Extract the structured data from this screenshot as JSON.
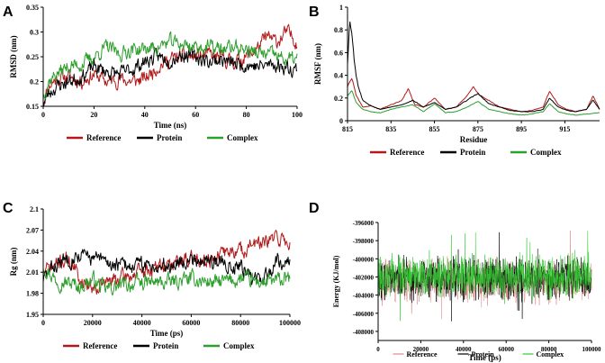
{
  "colors": {
    "reference": "#b11a1a",
    "protein": "#000000",
    "complex": "#2e9e2e",
    "reference_light": "#e08a8a",
    "complex_light": "#33cc33"
  },
  "chart_data": [
    {
      "panel": "A",
      "type": "line",
      "xlabel": "Time (ns)",
      "ylabel": "RMSD (nm)",
      "xlim": [
        0,
        100
      ],
      "ylim": [
        0.15,
        0.35
      ],
      "xticks": [
        0,
        20,
        40,
        60,
        80,
        100
      ],
      "yticks": [
        0.15,
        0.2,
        0.25,
        0.3,
        0.35
      ],
      "ytick_labels": [
        "0.15",
        "0.2",
        "0.25",
        "0.3",
        "0.35"
      ],
      "noise": 0.012,
      "series": [
        {
          "name": "Reference",
          "color_key": "reference",
          "seed": 11,
          "x": [
            0,
            2,
            5,
            10,
            15,
            20,
            25,
            30,
            35,
            40,
            45,
            50,
            55,
            60,
            65,
            70,
            75,
            80,
            85,
            88,
            92,
            96,
            100
          ],
          "y": [
            0.16,
            0.19,
            0.205,
            0.21,
            0.2,
            0.215,
            0.2,
            0.205,
            0.2,
            0.205,
            0.23,
            0.245,
            0.25,
            0.25,
            0.255,
            0.245,
            0.24,
            0.25,
            0.27,
            0.29,
            0.28,
            0.3,
            0.28
          ]
        },
        {
          "name": "Protein",
          "color_key": "protein",
          "seed": 23,
          "x": [
            0,
            2,
            5,
            10,
            15,
            20,
            25,
            30,
            35,
            40,
            45,
            50,
            55,
            60,
            65,
            70,
            75,
            80,
            85,
            90,
            95,
            100
          ],
          "y": [
            0.155,
            0.175,
            0.19,
            0.2,
            0.21,
            0.23,
            0.22,
            0.215,
            0.225,
            0.24,
            0.25,
            0.245,
            0.255,
            0.25,
            0.24,
            0.245,
            0.235,
            0.235,
            0.23,
            0.235,
            0.23,
            0.225
          ]
        },
        {
          "name": "Complex",
          "color_key": "complex",
          "seed": 37,
          "x": [
            0,
            2,
            5,
            10,
            15,
            20,
            25,
            30,
            35,
            40,
            45,
            50,
            55,
            60,
            65,
            70,
            75,
            80,
            85,
            90,
            95,
            100
          ],
          "y": [
            0.17,
            0.2,
            0.215,
            0.23,
            0.235,
            0.25,
            0.27,
            0.255,
            0.265,
            0.265,
            0.27,
            0.28,
            0.275,
            0.27,
            0.27,
            0.265,
            0.27,
            0.265,
            0.255,
            0.255,
            0.245,
            0.245
          ]
        }
      ],
      "legend": [
        "Reference",
        "Protein",
        "Complex"
      ]
    },
    {
      "panel": "B",
      "type": "line",
      "xlabel": "Residue",
      "ylabel": "RMSF (nm)",
      "xlim": [
        815,
        931
      ],
      "ylim": [
        0,
        1
      ],
      "xticks": [
        815,
        835,
        855,
        875,
        895,
        915
      ],
      "yticks": [
        0,
        0.2,
        0.4,
        0.6,
        0.8,
        1
      ],
      "ytick_labels": [
        "0",
        "0.2",
        "0.4",
        "0.6",
        "0.8",
        "1"
      ],
      "noise": 0.012,
      "series": [
        {
          "name": "Reference",
          "color_key": "reference",
          "seed": 41,
          "x": [
            815,
            817,
            819,
            822,
            826,
            830,
            835,
            840,
            843,
            846,
            850,
            855,
            860,
            865,
            870,
            873,
            876,
            880,
            885,
            890,
            895,
            900,
            905,
            908,
            912,
            916,
            920,
            925,
            928,
            931
          ],
          "y": [
            0.3,
            0.38,
            0.22,
            0.12,
            0.13,
            0.1,
            0.14,
            0.18,
            0.28,
            0.14,
            0.12,
            0.2,
            0.1,
            0.12,
            0.22,
            0.3,
            0.22,
            0.18,
            0.12,
            0.1,
            0.08,
            0.09,
            0.12,
            0.26,
            0.14,
            0.1,
            0.08,
            0.1,
            0.22,
            0.1
          ]
        },
        {
          "name": "Protein",
          "color_key": "protein",
          "seed": 53,
          "x": [
            815,
            816,
            817,
            818,
            819,
            820,
            822,
            825,
            830,
            835,
            840,
            845,
            850,
            855,
            860,
            865,
            870,
            875,
            880,
            885,
            890,
            895,
            900,
            905,
            908,
            912,
            916,
            920,
            925,
            928,
            931
          ],
          "y": [
            0.5,
            0.88,
            0.78,
            0.55,
            0.4,
            0.3,
            0.18,
            0.14,
            0.1,
            0.12,
            0.14,
            0.18,
            0.12,
            0.16,
            0.1,
            0.12,
            0.18,
            0.24,
            0.15,
            0.12,
            0.09,
            0.08,
            0.08,
            0.1,
            0.2,
            0.12,
            0.09,
            0.08,
            0.1,
            0.18,
            0.1
          ]
        },
        {
          "name": "Complex",
          "color_key": "complex",
          "seed": 67,
          "x": [
            815,
            817,
            819,
            822,
            826,
            830,
            835,
            840,
            845,
            850,
            855,
            860,
            865,
            870,
            875,
            880,
            885,
            890,
            895,
            900,
            905,
            908,
            912,
            916,
            920,
            925,
            931
          ],
          "y": [
            0.22,
            0.27,
            0.16,
            0.1,
            0.08,
            0.07,
            0.1,
            0.12,
            0.14,
            0.08,
            0.15,
            0.07,
            0.08,
            0.12,
            0.17,
            0.1,
            0.08,
            0.06,
            0.05,
            0.06,
            0.08,
            0.15,
            0.08,
            0.06,
            0.05,
            0.06,
            0.07
          ]
        }
      ],
      "legend": [
        "Reference",
        "Protein",
        "Complex"
      ]
    },
    {
      "panel": "C",
      "type": "line",
      "xlabel": "Time (ps)",
      "ylabel": "Rg (nm)",
      "xlim": [
        0,
        100000
      ],
      "ylim": [
        1.95,
        2.1
      ],
      "xticks": [
        0,
        20000,
        40000,
        60000,
        80000,
        100000
      ],
      "yticks": [
        1.95,
        1.98,
        2.01,
        2.04,
        2.07,
        2.1
      ],
      "ytick_labels": [
        "1.95",
        "1.98",
        "2.01",
        "2.04",
        "2.07",
        "2.1"
      ],
      "noise": 0.009,
      "series": [
        {
          "name": "Reference",
          "color_key": "reference",
          "seed": 71,
          "x": [
            0,
            5000,
            10000,
            15000,
            20000,
            30000,
            40000,
            50000,
            60000,
            70000,
            75000,
            80000,
            85000,
            90000,
            95000,
            100000
          ],
          "y": [
            2.01,
            2.02,
            2.03,
            2.0,
            1.99,
            2.0,
            2.01,
            2.02,
            2.03,
            2.03,
            2.04,
            2.04,
            2.05,
            2.05,
            2.06,
            2.05
          ]
        },
        {
          "name": "Protein",
          "color_key": "protein",
          "seed": 83,
          "x": [
            0,
            5000,
            10000,
            15000,
            20000,
            25000,
            30000,
            40000,
            50000,
            60000,
            70000,
            80000,
            85000,
            90000,
            95000,
            100000
          ],
          "y": [
            2.0,
            2.02,
            2.03,
            2.035,
            2.03,
            2.025,
            2.02,
            2.02,
            2.02,
            2.03,
            2.025,
            2.02,
            2.0,
            2.0,
            2.03,
            2.02
          ]
        },
        {
          "name": "Complex",
          "color_key": "complex",
          "seed": 97,
          "x": [
            0,
            5000,
            10000,
            15000,
            20000,
            25000,
            30000,
            40000,
            50000,
            60000,
            70000,
            80000,
            90000,
            100000
          ],
          "y": [
            2.02,
            2.0,
            1.995,
            1.99,
            2.0,
            1.985,
            1.99,
            1.995,
            1.995,
            2.0,
            1.995,
            2.0,
            1.995,
            2.0
          ]
        }
      ],
      "legend": [
        "Reference",
        "Protein",
        "Complex"
      ]
    },
    {
      "panel": "D",
      "type": "line",
      "xlabel": "Time (ps)",
      "ylabel": "Energy (KJ/mol)",
      "xlim": [
        0,
        100000
      ],
      "ylim": [
        -409000,
        -396000
      ],
      "xticks": [
        0,
        20000,
        40000,
        60000,
        80000,
        100000
      ],
      "yticks": [
        -408000,
        -406000,
        -404000,
        -402000,
        -400000,
        -398000,
        -396000
      ],
      "ytick_labels": [
        "-408000",
        "-406000",
        "-404000",
        "-402000",
        "-400000",
        "-398000",
        "-396000"
      ],
      "noise": 1400,
      "series": [
        {
          "name": "Reference",
          "color_key": "reference_light",
          "seed": 101,
          "x": [
            0,
            100000
          ],
          "y": [
            -402400,
            -402400
          ]
        },
        {
          "name": "Protein",
          "color_key": "protein",
          "seed": 113,
          "x": [
            0,
            100000
          ],
          "y": [
            -402200,
            -402200
          ]
        },
        {
          "name": "Complex",
          "color_key": "complex_light",
          "seed": 127,
          "x": [
            0,
            100000
          ],
          "y": [
            -401900,
            -401900
          ]
        }
      ],
      "legend": [
        "Reference",
        "Protein",
        "Complex"
      ]
    }
  ]
}
